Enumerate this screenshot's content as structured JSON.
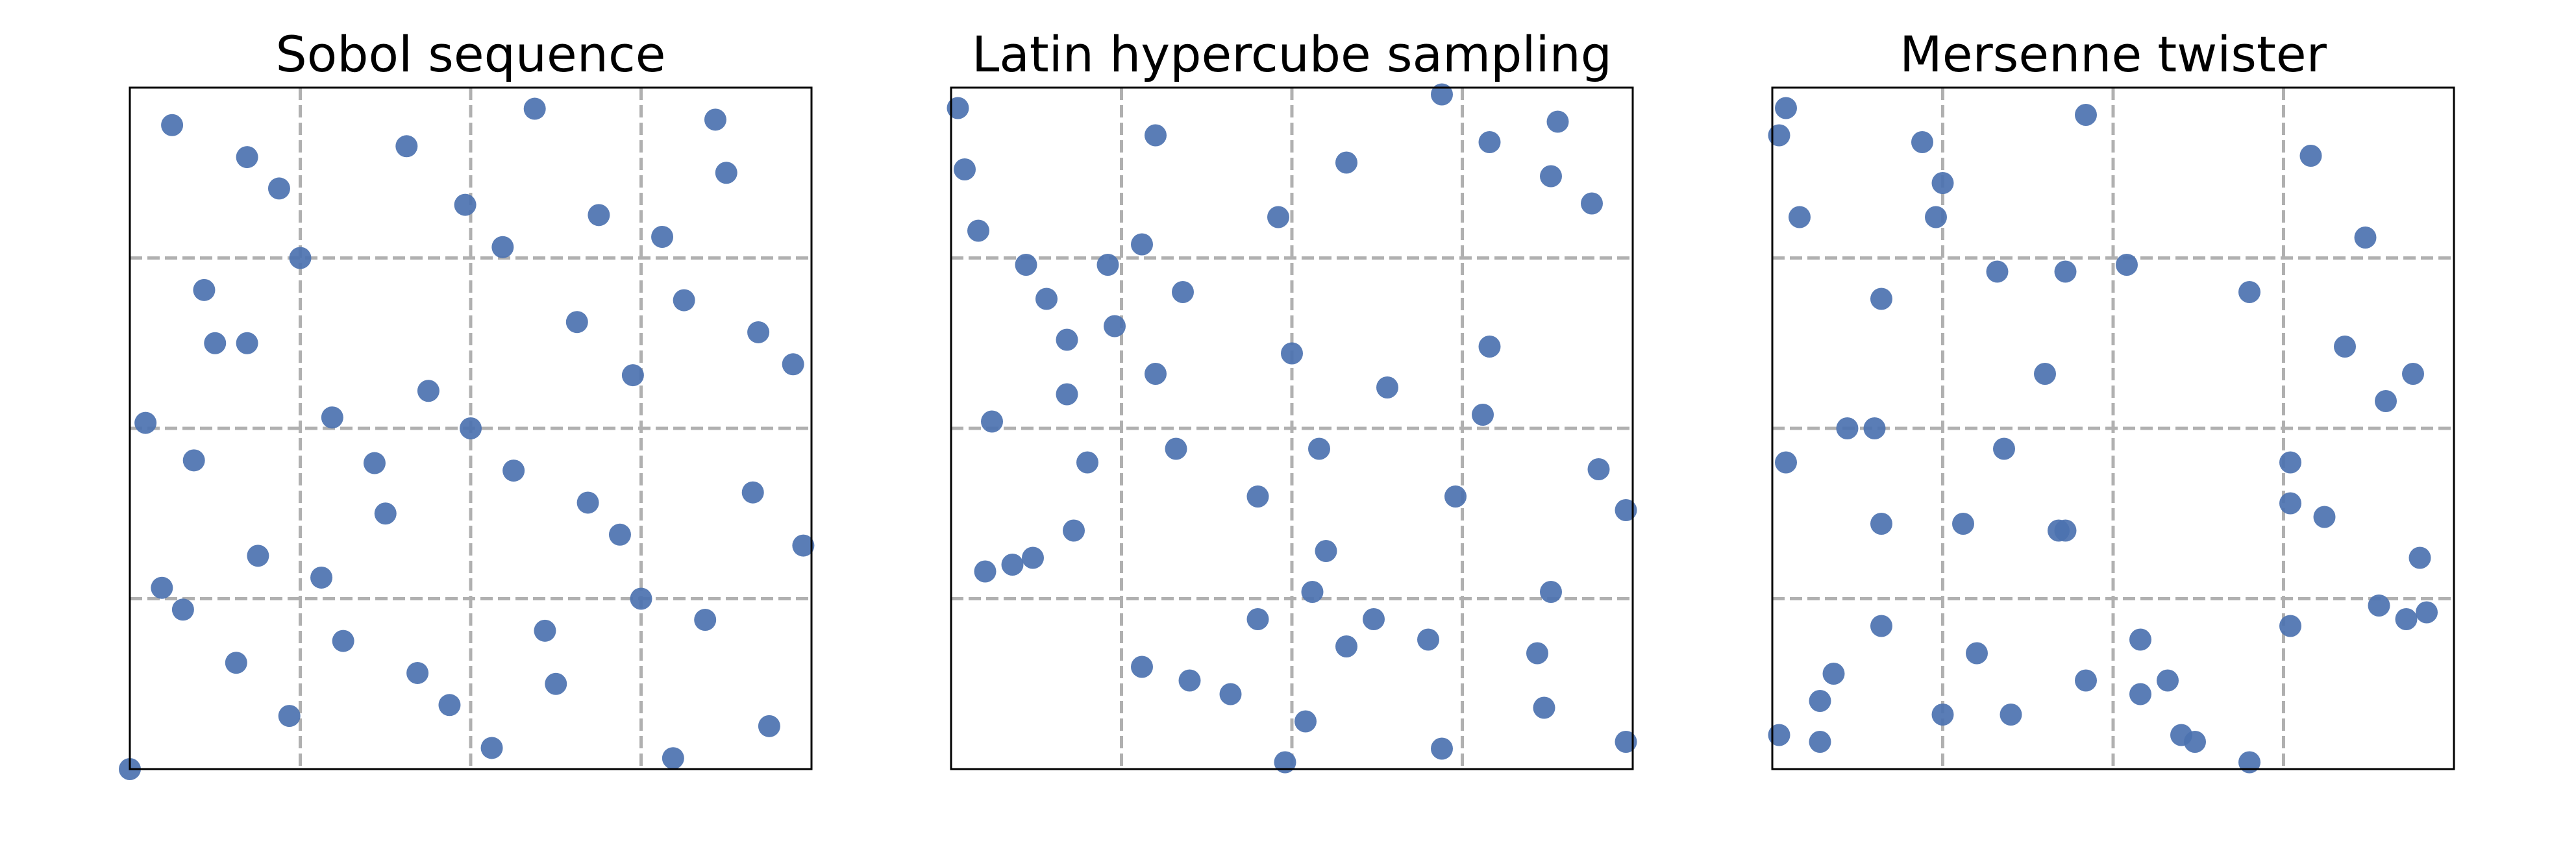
{
  "colors": {
    "point": "#4c72b0",
    "grid": "#b0b0b0",
    "frame": "#000000"
  },
  "chart_data": [
    {
      "type": "scatter",
      "title": "Sobol sequence",
      "xlim": [
        0,
        1
      ],
      "ylim": [
        0,
        1
      ],
      "grid": true,
      "grid_ticks": [
        0.25,
        0.5,
        0.75
      ],
      "points": [
        [
          0.0,
          0.0
        ],
        [
          0.062,
          0.945
        ],
        [
          0.172,
          0.898
        ],
        [
          0.219,
          0.852
        ],
        [
          0.406,
          0.914
        ],
        [
          0.492,
          0.828
        ],
        [
          0.594,
          0.969
        ],
        [
          0.859,
          0.953
        ],
        [
          0.875,
          0.875
        ],
        [
          0.688,
          0.813
        ],
        [
          0.781,
          0.781
        ],
        [
          0.547,
          0.766
        ],
        [
          0.25,
          0.75
        ],
        [
          0.109,
          0.703
        ],
        [
          0.125,
          0.625
        ],
        [
          0.172,
          0.625
        ],
        [
          0.023,
          0.508
        ],
        [
          0.094,
          0.453
        ],
        [
          0.297,
          0.516
        ],
        [
          0.359,
          0.449
        ],
        [
          0.438,
          0.555
        ],
        [
          0.5,
          0.5
        ],
        [
          0.656,
          0.656
        ],
        [
          0.738,
          0.578
        ],
        [
          0.813,
          0.688
        ],
        [
          0.922,
          0.641
        ],
        [
          0.973,
          0.594
        ],
        [
          0.563,
          0.438
        ],
        [
          0.375,
          0.375
        ],
        [
          0.672,
          0.391
        ],
        [
          0.719,
          0.344
        ],
        [
          0.914,
          0.406
        ],
        [
          0.988,
          0.328
        ],
        [
          0.188,
          0.313
        ],
        [
          0.281,
          0.281
        ],
        [
          0.047,
          0.266
        ],
        [
          0.078,
          0.234
        ],
        [
          0.156,
          0.156
        ],
        [
          0.313,
          0.188
        ],
        [
          0.422,
          0.141
        ],
        [
          0.469,
          0.094
        ],
        [
          0.531,
          0.031
        ],
        [
          0.609,
          0.203
        ],
        [
          0.625,
          0.125
        ],
        [
          0.75,
          0.25
        ],
        [
          0.844,
          0.219
        ],
        [
          0.797,
          0.016
        ],
        [
          0.938,
          0.063
        ],
        [
          0.234,
          0.078
        ]
      ]
    },
    {
      "type": "scatter",
      "title": "Latin hypercube sampling",
      "xlim": [
        0,
        1
      ],
      "ylim": [
        0,
        1
      ],
      "grid": true,
      "grid_ticks": [
        0.25,
        0.5,
        0.75
      ],
      "points": [
        [
          0.01,
          0.97
        ],
        [
          0.02,
          0.88
        ],
        [
          0.04,
          0.79
        ],
        [
          0.11,
          0.74
        ],
        [
          0.14,
          0.69
        ],
        [
          0.17,
          0.63
        ],
        [
          0.06,
          0.51
        ],
        [
          0.17,
          0.55
        ],
        [
          0.23,
          0.74
        ],
        [
          0.28,
          0.77
        ],
        [
          0.3,
          0.93
        ],
        [
          0.24,
          0.65
        ],
        [
          0.2,
          0.45
        ],
        [
          0.34,
          0.7
        ],
        [
          0.3,
          0.58
        ],
        [
          0.48,
          0.81
        ],
        [
          0.5,
          0.61
        ],
        [
          0.54,
          0.47
        ],
        [
          0.58,
          0.89
        ],
        [
          0.64,
          0.56
        ],
        [
          0.72,
          0.99
        ],
        [
          0.79,
          0.92
        ],
        [
          0.89,
          0.95
        ],
        [
          0.88,
          0.87
        ],
        [
          0.94,
          0.83
        ],
        [
          0.79,
          0.62
        ],
        [
          0.78,
          0.52
        ],
        [
          0.95,
          0.44
        ],
        [
          0.99,
          0.38
        ],
        [
          0.74,
          0.4
        ],
        [
          0.88,
          0.26
        ],
        [
          0.62,
          0.22
        ],
        [
          0.55,
          0.32
        ],
        [
          0.45,
          0.4
        ],
        [
          0.33,
          0.47
        ],
        [
          0.18,
          0.35
        ],
        [
          0.09,
          0.3
        ],
        [
          0.12,
          0.31
        ],
        [
          0.05,
          0.29
        ],
        [
          0.53,
          0.26
        ],
        [
          0.45,
          0.22
        ],
        [
          0.28,
          0.15
        ],
        [
          0.35,
          0.13
        ],
        [
          0.41,
          0.11
        ],
        [
          0.52,
          0.07
        ],
        [
          0.58,
          0.18
        ],
        [
          0.7,
          0.19
        ],
        [
          0.72,
          0.03
        ],
        [
          0.86,
          0.17
        ],
        [
          0.87,
          0.09
        ],
        [
          0.49,
          0.01
        ],
        [
          0.99,
          0.04
        ]
      ]
    },
    {
      "type": "scatter",
      "title": "Mersenne twister",
      "xlim": [
        0,
        1
      ],
      "ylim": [
        0,
        1
      ],
      "grid": true,
      "grid_ticks": [
        0.25,
        0.5,
        0.75
      ],
      "points": [
        [
          0.01,
          0.93
        ],
        [
          0.02,
          0.97
        ],
        [
          0.04,
          0.81
        ],
        [
          0.22,
          0.92
        ],
        [
          0.25,
          0.86
        ],
        [
          0.24,
          0.81
        ],
        [
          0.46,
          0.96
        ],
        [
          0.79,
          0.9
        ],
        [
          0.87,
          0.78
        ],
        [
          0.16,
          0.69
        ],
        [
          0.33,
          0.73
        ],
        [
          0.43,
          0.73
        ],
        [
          0.52,
          0.74
        ],
        [
          0.7,
          0.7
        ],
        [
          0.84,
          0.62
        ],
        [
          0.4,
          0.58
        ],
        [
          0.9,
          0.54
        ],
        [
          0.94,
          0.58
        ],
        [
          0.11,
          0.5
        ],
        [
          0.15,
          0.5
        ],
        [
          0.02,
          0.45
        ],
        [
          0.34,
          0.47
        ],
        [
          0.76,
          0.45
        ],
        [
          0.76,
          0.39
        ],
        [
          0.81,
          0.37
        ],
        [
          0.16,
          0.36
        ],
        [
          0.28,
          0.36
        ],
        [
          0.42,
          0.35
        ],
        [
          0.43,
          0.35
        ],
        [
          0.95,
          0.31
        ],
        [
          0.89,
          0.24
        ],
        [
          0.93,
          0.22
        ],
        [
          0.96,
          0.23
        ],
        [
          0.76,
          0.21
        ],
        [
          0.16,
          0.21
        ],
        [
          0.54,
          0.19
        ],
        [
          0.3,
          0.17
        ],
        [
          0.09,
          0.14
        ],
        [
          0.07,
          0.1
        ],
        [
          0.25,
          0.08
        ],
        [
          0.35,
          0.08
        ],
        [
          0.46,
          0.13
        ],
        [
          0.54,
          0.11
        ],
        [
          0.58,
          0.13
        ],
        [
          0.6,
          0.05
        ],
        [
          0.62,
          0.04
        ],
        [
          0.7,
          0.01
        ],
        [
          0.01,
          0.05
        ],
        [
          0.07,
          0.04
        ]
      ]
    }
  ]
}
